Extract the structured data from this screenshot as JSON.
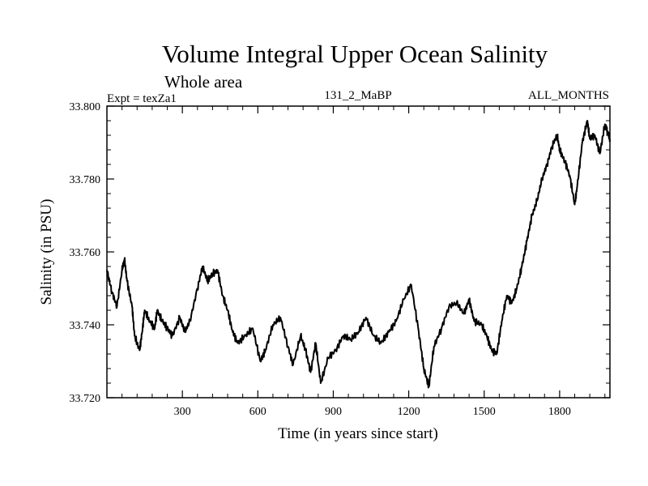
{
  "chart_data": {
    "type": "line",
    "title": "Volume Integral Upper Ocean Salinity",
    "subtitle": "Whole area",
    "experiment": "Expt = texZa1",
    "run_label": "131_2_MaBP",
    "period_label": "ALL_MONTHS",
    "xlabel": "Time (in years since start)",
    "ylabel": "Salinity (in PSU)",
    "xlim": [
      0,
      2000
    ],
    "ylim": [
      33.72,
      33.8
    ],
    "grid": false,
    "x_ticks": [
      300,
      600,
      900,
      1200,
      1500,
      1800
    ],
    "x_tick_labels": [
      "300",
      "600",
      "900",
      "1200",
      "1500",
      "1800"
    ],
    "y_ticks": [
      33.72,
      33.74,
      33.76,
      33.78,
      33.8
    ],
    "y_tick_labels": [
      "33.720",
      "33.740",
      "33.760",
      "33.780",
      "33.800"
    ],
    "series": [
      {
        "name": "salinity",
        "x": [
          0,
          20,
          40,
          60,
          70,
          80,
          100,
          110,
          130,
          140,
          150,
          170,
          190,
          200,
          220,
          240,
          260,
          290,
          310,
          330,
          360,
          380,
          400,
          420,
          440,
          460,
          480,
          500,
          520,
          550,
          580,
          610,
          630,
          660,
          690,
          720,
          740,
          770,
          790,
          810,
          830,
          850,
          880,
          910,
          940,
          970,
          1000,
          1030,
          1060,
          1090,
          1120,
          1150,
          1180,
          1210,
          1240,
          1260,
          1280,
          1300,
          1330,
          1360,
          1390,
          1420,
          1440,
          1460,
          1490,
          1510,
          1530,
          1550,
          1570,
          1590,
          1610,
          1630,
          1650,
          1670,
          1690,
          1710,
          1730,
          1750,
          1770,
          1790,
          1800,
          1820,
          1840,
          1860,
          1870,
          1890,
          1910,
          1920,
          1940,
          1960,
          1980,
          1990,
          2000
        ],
        "y": [
          33.755,
          33.749,
          33.745,
          33.755,
          33.758,
          33.752,
          33.745,
          33.737,
          33.733,
          33.738,
          33.744,
          33.741,
          33.739,
          33.744,
          33.741,
          33.739,
          33.737,
          33.742,
          33.738,
          33.741,
          33.75,
          33.756,
          33.752,
          33.754,
          33.755,
          33.748,
          33.744,
          33.738,
          33.735,
          33.737,
          33.739,
          33.73,
          33.733,
          33.74,
          33.742,
          33.734,
          33.729,
          33.737,
          33.733,
          33.727,
          33.735,
          33.724,
          33.731,
          33.733,
          33.737,
          33.736,
          33.738,
          33.742,
          33.737,
          33.735,
          33.738,
          33.741,
          33.747,
          33.751,
          33.738,
          33.728,
          33.723,
          33.734,
          33.739,
          33.745,
          33.746,
          33.743,
          33.747,
          33.741,
          33.74,
          33.737,
          33.733,
          33.732,
          33.741,
          33.748,
          33.746,
          33.75,
          33.756,
          33.763,
          33.77,
          33.774,
          33.78,
          33.784,
          33.789,
          33.792,
          33.788,
          33.785,
          33.781,
          33.773,
          33.778,
          33.79,
          33.796,
          33.791,
          33.792,
          33.787,
          33.795,
          33.793,
          33.791
        ]
      }
    ]
  }
}
